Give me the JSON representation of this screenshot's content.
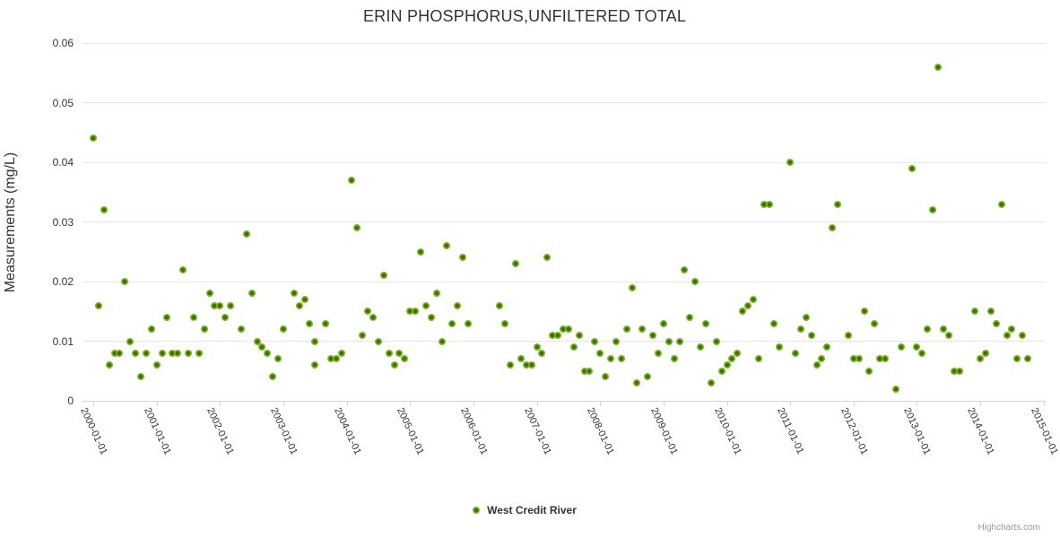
{
  "credits": "Highcharts.com",
  "colors": {
    "point_outer": "#7bb321",
    "point_inner": "#3f6d04",
    "grid_line": "#e6e6e6",
    "axis_line": "#ccd6eb",
    "title_text": "#333333",
    "label_text": "#333333",
    "credits_text": "#999999"
  },
  "y_axis": {
    "title": "Measurements (mg/L)",
    "tick_labels": [
      "0",
      "0.01",
      "0.02",
      "0.03",
      "0.04",
      "0.05",
      "0.06"
    ]
  },
  "chart_data": {
    "type": "scatter",
    "title": "ERIN PHOSPHORUS,UNFILTERED TOTAL",
    "xlabel": "",
    "ylabel": "Measurements (mg/L)",
    "ylim": [
      0,
      0.06
    ],
    "ytick_interval": 0.01,
    "xticks": [
      "2000-01-01",
      "2001-01-01",
      "2002-01-01",
      "2003-01-01",
      "2004-01-01",
      "2005-01-01",
      "2006-01-01",
      "2007-01-01",
      "2008-01-01",
      "2009-01-01",
      "2010-01-01",
      "2011-01-01",
      "2012-01-01",
      "2013-01-01",
      "2014-01-01",
      "2015-01-01"
    ],
    "grid": true,
    "legend_position": "bottom-center",
    "series": [
      {
        "name": "West Credit River",
        "color": "#7bb321",
        "points": [
          [
            "2000-01",
            0.044
          ],
          [
            "2000-02",
            0.016
          ],
          [
            "2000-03",
            0.032
          ],
          [
            "2000-04",
            0.006
          ],
          [
            "2000-05",
            0.008
          ],
          [
            "2000-06",
            0.008
          ],
          [
            "2000-07",
            0.02
          ],
          [
            "2000-08",
            0.01
          ],
          [
            "2000-09",
            0.008
          ],
          [
            "2000-10",
            0.004
          ],
          [
            "2000-11",
            0.008
          ],
          [
            "2000-12",
            0.012
          ],
          [
            "2001-01",
            0.006
          ],
          [
            "2001-02",
            0.008
          ],
          [
            "2001-03",
            0.014
          ],
          [
            "2001-04",
            0.008
          ],
          [
            "2001-05",
            0.008
          ],
          [
            "2001-06",
            0.022
          ],
          [
            "2001-07",
            0.008
          ],
          [
            "2001-08",
            0.014
          ],
          [
            "2001-09",
            0.008
          ],
          [
            "2001-10",
            0.012
          ],
          [
            "2001-11",
            0.018
          ],
          [
            "2001-12",
            0.016
          ],
          [
            "2002-01",
            0.016
          ],
          [
            "2002-02",
            0.014
          ],
          [
            "2002-03",
            0.016
          ],
          [
            "2002-05",
            0.012
          ],
          [
            "2002-06",
            0.028
          ],
          [
            "2002-07",
            0.018
          ],
          [
            "2002-08",
            0.01
          ],
          [
            "2002-09",
            0.009
          ],
          [
            "2002-10",
            0.008
          ],
          [
            "2002-11",
            0.004
          ],
          [
            "2002-12",
            0.007
          ],
          [
            "2003-01",
            0.012
          ],
          [
            "2003-03",
            0.018
          ],
          [
            "2003-04",
            0.016
          ],
          [
            "2003-05",
            0.017
          ],
          [
            "2003-06",
            0.013
          ],
          [
            "2003-07",
            0.006
          ],
          [
            "2003-07",
            0.01
          ],
          [
            "2003-09",
            0.013
          ],
          [
            "2003-10",
            0.007
          ],
          [
            "2003-11",
            0.007
          ],
          [
            "2003-12",
            0.008
          ],
          [
            "2004-02",
            0.037
          ],
          [
            "2004-03",
            0.029
          ],
          [
            "2004-04",
            0.011
          ],
          [
            "2004-05",
            0.015
          ],
          [
            "2004-06",
            0.014
          ],
          [
            "2004-07",
            0.01
          ],
          [
            "2004-08",
            0.021
          ],
          [
            "2004-09",
            0.008
          ],
          [
            "2004-10",
            0.006
          ],
          [
            "2004-11",
            0.008
          ],
          [
            "2004-12",
            0.007
          ],
          [
            "2005-01",
            0.015
          ],
          [
            "2005-02",
            0.015
          ],
          [
            "2005-03",
            0.025
          ],
          [
            "2005-04",
            0.016
          ],
          [
            "2005-05",
            0.014
          ],
          [
            "2005-06",
            0.018
          ],
          [
            "2005-07",
            0.01
          ],
          [
            "2005-08",
            0.026
          ],
          [
            "2005-09",
            0.013
          ],
          [
            "2005-10",
            0.016
          ],
          [
            "2005-11",
            0.024
          ],
          [
            "2005-12",
            0.013
          ],
          [
            "2006-06",
            0.016
          ],
          [
            "2006-07",
            0.013
          ],
          [
            "2006-08",
            0.006
          ],
          [
            "2006-09",
            0.023
          ],
          [
            "2006-10",
            0.007
          ],
          [
            "2006-11",
            0.006
          ],
          [
            "2006-12",
            0.006
          ],
          [
            "2007-01",
            0.009
          ],
          [
            "2007-02",
            0.008
          ],
          [
            "2007-03",
            0.024
          ],
          [
            "2007-04",
            0.011
          ],
          [
            "2007-05",
            0.011
          ],
          [
            "2007-06",
            0.012
          ],
          [
            "2007-07",
            0.012
          ],
          [
            "2007-08",
            0.009
          ],
          [
            "2007-09",
            0.011
          ],
          [
            "2007-10",
            0.005
          ],
          [
            "2007-11",
            0.005
          ],
          [
            "2007-12",
            0.01
          ],
          [
            "2008-01",
            0.008
          ],
          [
            "2008-02",
            0.004
          ],
          [
            "2008-03",
            0.007
          ],
          [
            "2008-04",
            0.01
          ],
          [
            "2008-05",
            0.007
          ],
          [
            "2008-06",
            0.012
          ],
          [
            "2008-07",
            0.019
          ],
          [
            "2008-08",
            0.003
          ],
          [
            "2008-09",
            0.012
          ],
          [
            "2008-10",
            0.004
          ],
          [
            "2008-11",
            0.011
          ],
          [
            "2008-12",
            0.008
          ],
          [
            "2009-01",
            0.013
          ],
          [
            "2009-02",
            0.01
          ],
          [
            "2009-03",
            0.007
          ],
          [
            "2009-04",
            0.01
          ],
          [
            "2009-05",
            0.022
          ],
          [
            "2009-06",
            0.014
          ],
          [
            "2009-07",
            0.02
          ],
          [
            "2009-08",
            0.009
          ],
          [
            "2009-09",
            0.013
          ],
          [
            "2009-10",
            0.003
          ],
          [
            "2009-11",
            0.01
          ],
          [
            "2009-12",
            0.005
          ],
          [
            "2010-01",
            0.006
          ],
          [
            "2010-02",
            0.007
          ],
          [
            "2010-03",
            0.008
          ],
          [
            "2010-04",
            0.015
          ],
          [
            "2010-05",
            0.016
          ],
          [
            "2010-06",
            0.017
          ],
          [
            "2010-07",
            0.007
          ],
          [
            "2010-08",
            0.033
          ],
          [
            "2010-09",
            0.033
          ],
          [
            "2010-10",
            0.013
          ],
          [
            "2010-11",
            0.009
          ],
          [
            "2011-01",
            0.04
          ],
          [
            "2011-02",
            0.008
          ],
          [
            "2011-03",
            0.012
          ],
          [
            "2011-04",
            0.014
          ],
          [
            "2011-05",
            0.011
          ],
          [
            "2011-06",
            0.006
          ],
          [
            "2011-07",
            0.007
          ],
          [
            "2011-08",
            0.009
          ],
          [
            "2011-09",
            0.029
          ],
          [
            "2011-10",
            0.033
          ],
          [
            "2011-12",
            0.011
          ],
          [
            "2012-01",
            0.007
          ],
          [
            "2012-02",
            0.007
          ],
          [
            "2012-03",
            0.015
          ],
          [
            "2012-04",
            0.005
          ],
          [
            "2012-05",
            0.013
          ],
          [
            "2012-06",
            0.007
          ],
          [
            "2012-07",
            0.007
          ],
          [
            "2012-09",
            0.002
          ],
          [
            "2012-10",
            0.009
          ],
          [
            "2012-12",
            0.039
          ],
          [
            "2013-01",
            0.009
          ],
          [
            "2013-02",
            0.008
          ],
          [
            "2013-03",
            0.012
          ],
          [
            "2013-04",
            0.032
          ],
          [
            "2013-05",
            0.056
          ],
          [
            "2013-06",
            0.012
          ],
          [
            "2013-07",
            0.011
          ],
          [
            "2013-08",
            0.005
          ],
          [
            "2013-09",
            0.005
          ],
          [
            "2013-12",
            0.015
          ],
          [
            "2014-01",
            0.007
          ],
          [
            "2014-02",
            0.008
          ],
          [
            "2014-03",
            0.015
          ],
          [
            "2014-04",
            0.013
          ],
          [
            "2014-05",
            0.033
          ],
          [
            "2014-06",
            0.011
          ],
          [
            "2014-07",
            0.012
          ],
          [
            "2014-08",
            0.007
          ],
          [
            "2014-09",
            0.011
          ],
          [
            "2014-10",
            0.007
          ]
        ]
      }
    ]
  }
}
